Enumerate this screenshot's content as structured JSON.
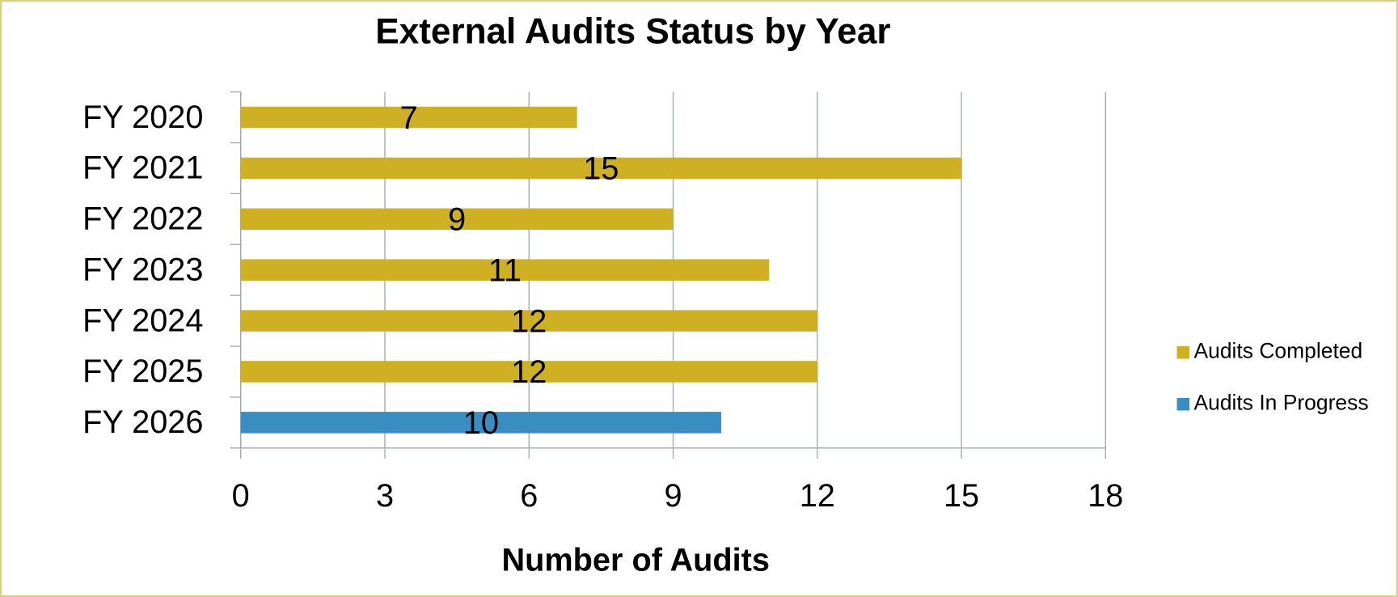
{
  "chart_data": {
    "type": "hbar",
    "title": "External Audits Status by Year",
    "x_label": "Number of Audits",
    "categories": [
      "FY 2020",
      "FY 2021",
      "FY 2022",
      "FY 2023",
      "FY 2024",
      "FY 2025",
      "FY 2026"
    ],
    "series": [
      {
        "name": "Audits Completed",
        "color": "#cfb022",
        "values": [
          7,
          15,
          9,
          11,
          12,
          12,
          null
        ]
      },
      {
        "name": "Audits In Progress",
        "color": "#3a8dc1",
        "values": [
          null,
          null,
          null,
          null,
          null,
          null,
          10
        ]
      }
    ],
    "xlim": [
      0,
      18
    ],
    "xticks": [
      0,
      3,
      6,
      9,
      12,
      15,
      18
    ],
    "grid": true,
    "legend": "right"
  }
}
